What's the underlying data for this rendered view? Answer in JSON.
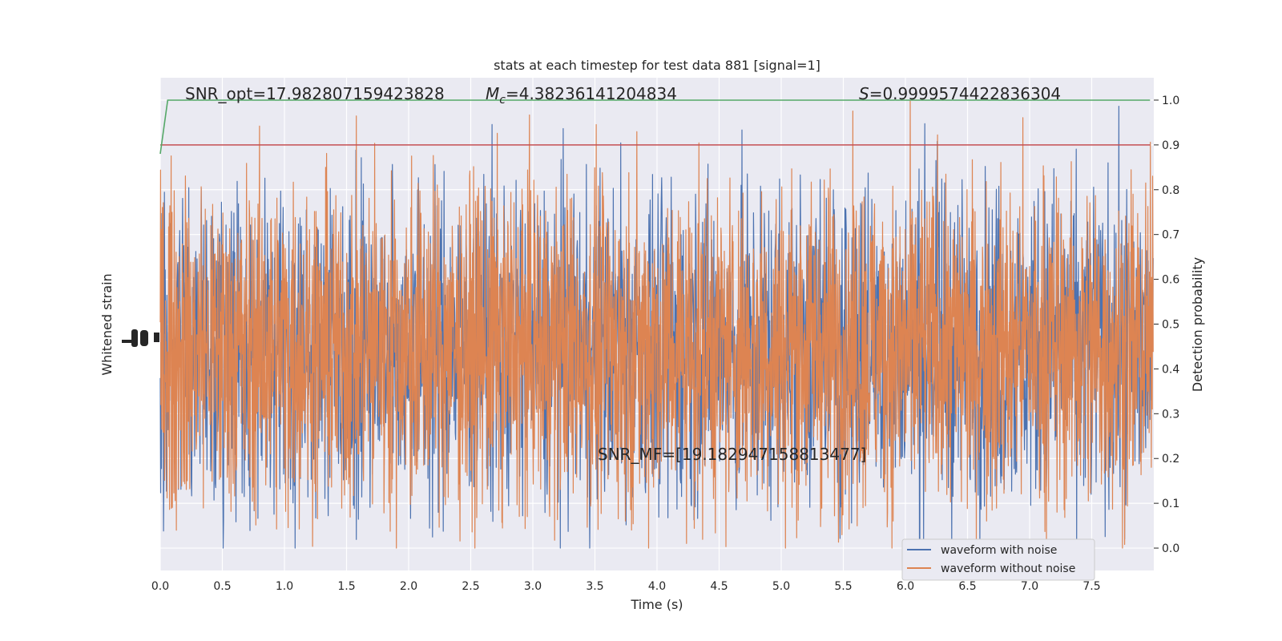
{
  "chart_data": {
    "type": "line",
    "title": "stats at each timestep for test data 881 [signal=1]",
    "xlabel": "Time (s)",
    "ylabel_left": "Whitened strain",
    "ylabel_right": "Detection probability",
    "xlim": [
      0.0,
      8.0
    ],
    "ylim_right": [
      -0.05,
      1.05
    ],
    "x_ticks": [
      "0.0",
      "0.5",
      "1.0",
      "1.5",
      "2.0",
      "2.5",
      "3.0",
      "3.5",
      "4.0",
      "4.5",
      "5.0",
      "5.5",
      "6.0",
      "6.5",
      "7.0",
      "7.5"
    ],
    "x_tick_values": [
      0.0,
      0.5,
      1.0,
      1.5,
      2.0,
      2.5,
      3.0,
      3.5,
      4.0,
      4.5,
      5.0,
      5.5,
      6.0,
      6.5,
      7.0,
      7.5
    ],
    "y_right_ticks": [
      "0.0",
      "0.1",
      "0.2",
      "0.3",
      "0.4",
      "0.5",
      "0.6",
      "0.7",
      "0.8",
      "0.9",
      "1.0"
    ],
    "y_right_tick_values": [
      0.0,
      0.1,
      0.2,
      0.3,
      0.4,
      0.5,
      0.6,
      0.7,
      0.8,
      0.9,
      1.0
    ],
    "grid": true,
    "legend_position": "bottom-right",
    "series": [
      {
        "name": "waveform with noise",
        "color": "#4c72b0",
        "center": 0.45,
        "amplitude": 0.18
      },
      {
        "name": "waveform without noise",
        "color": "#dd8452",
        "center": 0.45,
        "amplitude": 0.18
      }
    ],
    "probability_line": {
      "color": "#55a868",
      "x": [
        0.0,
        0.06,
        7.97
      ],
      "y": [
        0.88,
        1.0,
        1.0
      ]
    },
    "threshold_line": {
      "color": "#c44e52",
      "value": 0.9
    },
    "annotations": {
      "snr_opt": "SNR_opt=17.982807159423828",
      "mc_symbol": "M",
      "mc_sub": "c",
      "mc_value": "=4.38236141204834",
      "s_symbol": "S",
      "s_value": "=0.9999574422836304",
      "snr_mf": "SNR_MF=[19.182947158813477]"
    }
  },
  "colors": {
    "plot_bg": "#eaeaf2",
    "grid": "#ffffff"
  }
}
